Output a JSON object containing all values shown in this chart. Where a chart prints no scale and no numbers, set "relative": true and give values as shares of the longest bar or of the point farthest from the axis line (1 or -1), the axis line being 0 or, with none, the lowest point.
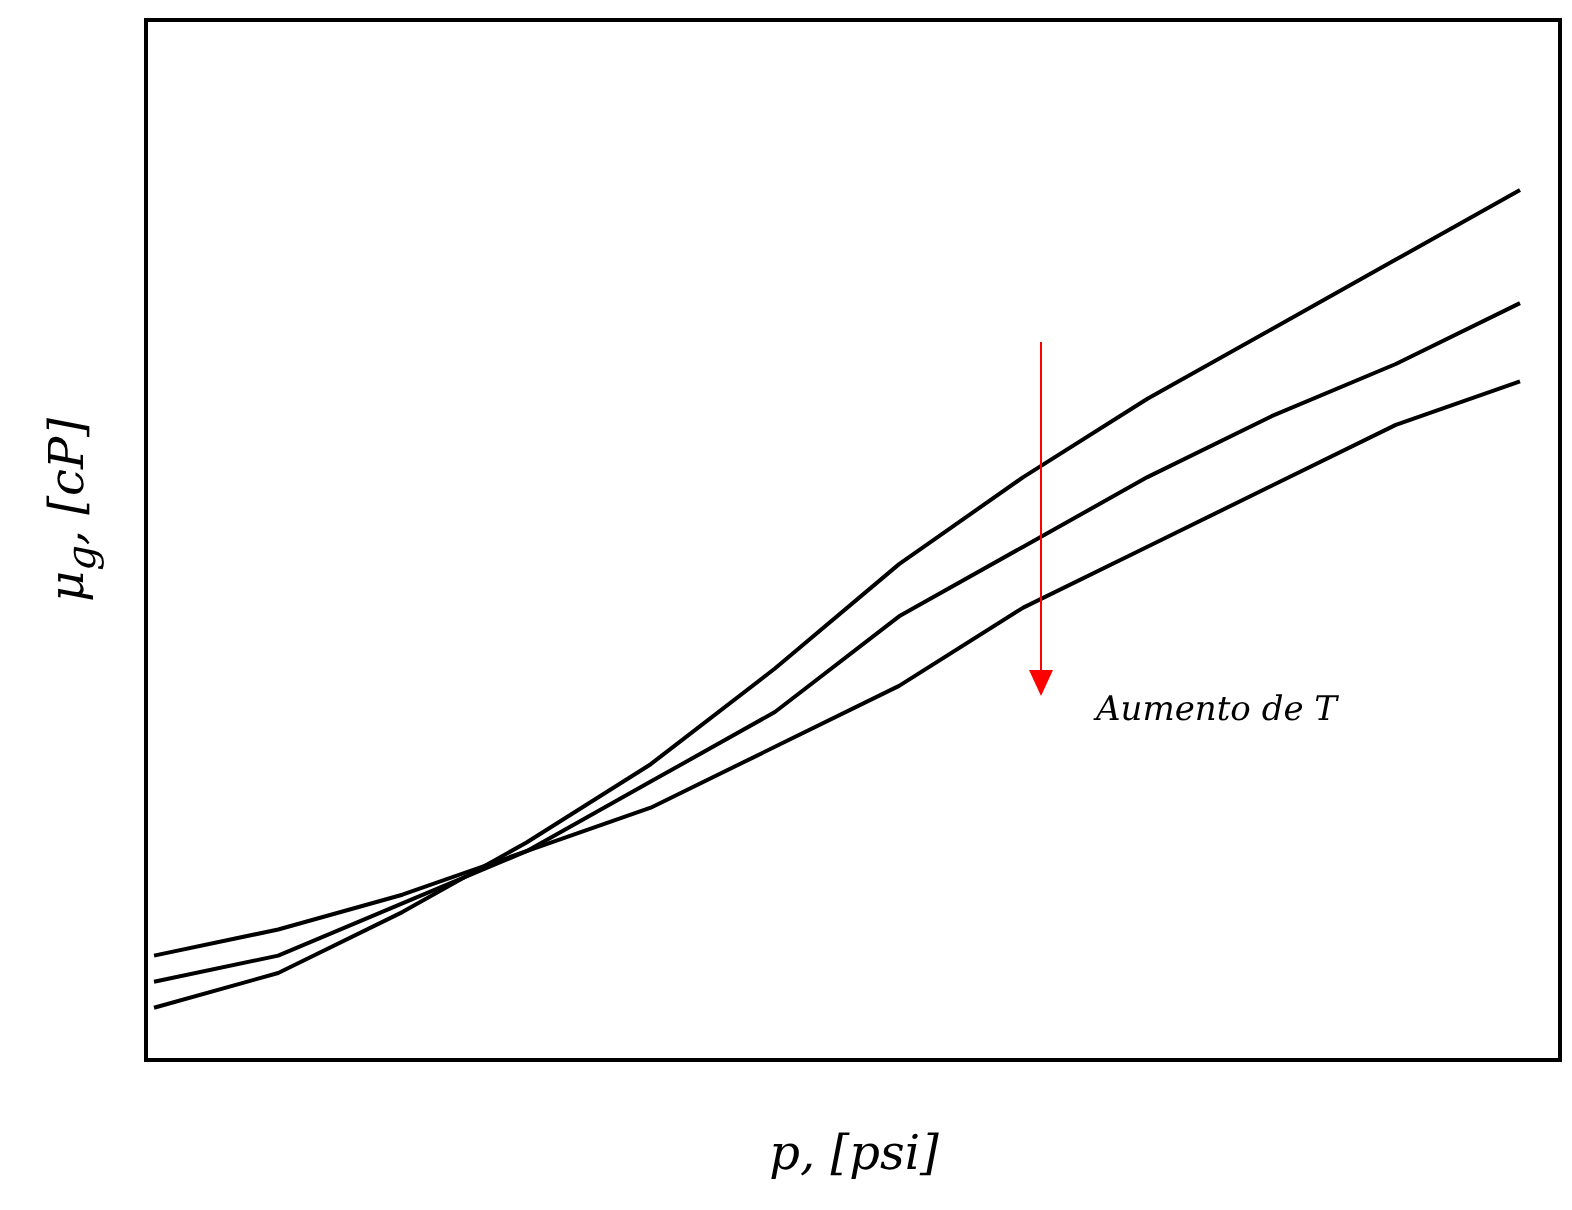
{
  "chart_data": {
    "type": "line",
    "relative": true,
    "xlabel": "p, [psi]",
    "ylabel": "μ$_{g}$, [cP]",
    "categories": [
      null,
      null,
      null,
      null,
      null,
      null,
      null,
      null,
      null,
      null,
      null,
      null
    ],
    "series": [
      {
        "color": "#000000",
        "values": [
          0.06,
          0.1,
          0.17,
          0.25,
          0.34,
          0.45,
          0.57,
          0.67,
          0.76,
          0.84,
          0.92,
          1
        ]
      },
      {
        "color": "#000000",
        "values": [
          0.09,
          0.12,
          0.18,
          0.24,
          0.32,
          0.4,
          0.51,
          0.59,
          0.67,
          0.74,
          0.8,
          0.87
        ]
      },
      {
        "color": "#000000",
        "values": [
          0.12,
          0.15,
          0.19,
          0.24,
          0.29,
          0.36,
          0.43,
          0.52,
          0.59,
          0.66,
          0.73,
          0.78
        ]
      }
    ],
    "annotations": [
      "Aumento de T"
    ]
  }
}
